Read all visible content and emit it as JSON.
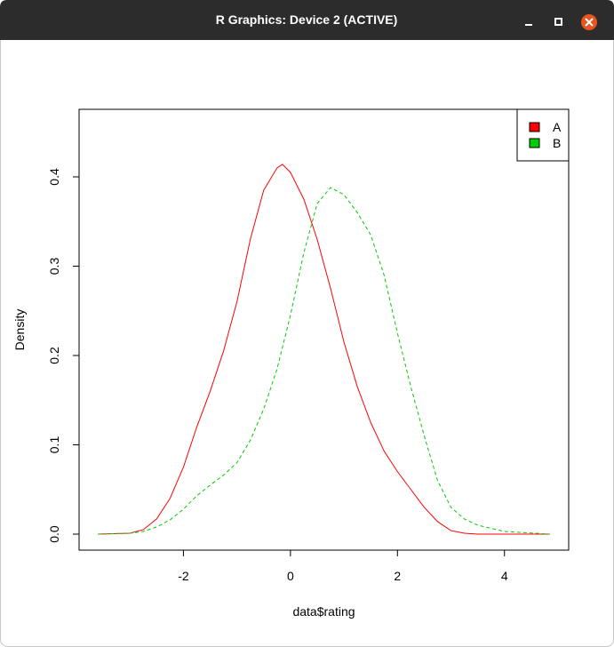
{
  "window": {
    "title": "R Graphics: Device 2 (ACTIVE)"
  },
  "chart_data": {
    "type": "line",
    "xlabel": "data$rating",
    "ylabel": "Density",
    "xlim": [
      -3.95,
      5.2
    ],
    "ylim": [
      -0.0179,
      0.4756
    ],
    "xticks": [
      -2,
      0,
      2,
      4
    ],
    "yticks": [
      {
        "value": 0,
        "label": "0.0"
      },
      0.1,
      0.2,
      0.3,
      0.4
    ],
    "legend": "topright",
    "series": [
      {
        "name": "A",
        "color": "#ff0000",
        "dash": false,
        "x": [
          -3.6,
          -3.0,
          -2.75,
          -2.5,
          -2.25,
          -2.0,
          -1.75,
          -1.5,
          -1.25,
          -1.0,
          -0.75,
          -0.5,
          -0.25,
          -0.15,
          0.0,
          0.25,
          0.5,
          0.75,
          1.0,
          1.25,
          1.5,
          1.75,
          2.0,
          2.25,
          2.5,
          2.75,
          3.0,
          3.25,
          3.5,
          4.85
        ],
        "values": [
          0,
          0.001,
          0.005,
          0.017,
          0.04,
          0.075,
          0.12,
          0.16,
          0.205,
          0.26,
          0.33,
          0.385,
          0.41,
          0.414,
          0.405,
          0.375,
          0.33,
          0.275,
          0.215,
          0.165,
          0.125,
          0.093,
          0.07,
          0.05,
          0.03,
          0.014,
          0.004,
          0.001,
          0,
          0
        ]
      },
      {
        "name": "B",
        "color": "#00cd00",
        "dash": true,
        "x": [
          -3.6,
          -3.0,
          -2.75,
          -2.5,
          -2.25,
          -2.0,
          -1.75,
          -1.5,
          -1.25,
          -1.0,
          -0.75,
          -0.5,
          -0.25,
          0.0,
          0.25,
          0.5,
          0.75,
          1.0,
          1.25,
          1.5,
          1.75,
          2.0,
          2.25,
          2.5,
          2.75,
          3.0,
          3.25,
          3.5,
          4.0,
          4.85
        ],
        "values": [
          0,
          0.001,
          0.003,
          0.008,
          0.016,
          0.028,
          0.043,
          0.055,
          0.066,
          0.08,
          0.105,
          0.14,
          0.185,
          0.245,
          0.315,
          0.37,
          0.388,
          0.38,
          0.36,
          0.335,
          0.29,
          0.225,
          0.165,
          0.11,
          0.06,
          0.03,
          0.017,
          0.01,
          0.003,
          0
        ]
      }
    ]
  }
}
